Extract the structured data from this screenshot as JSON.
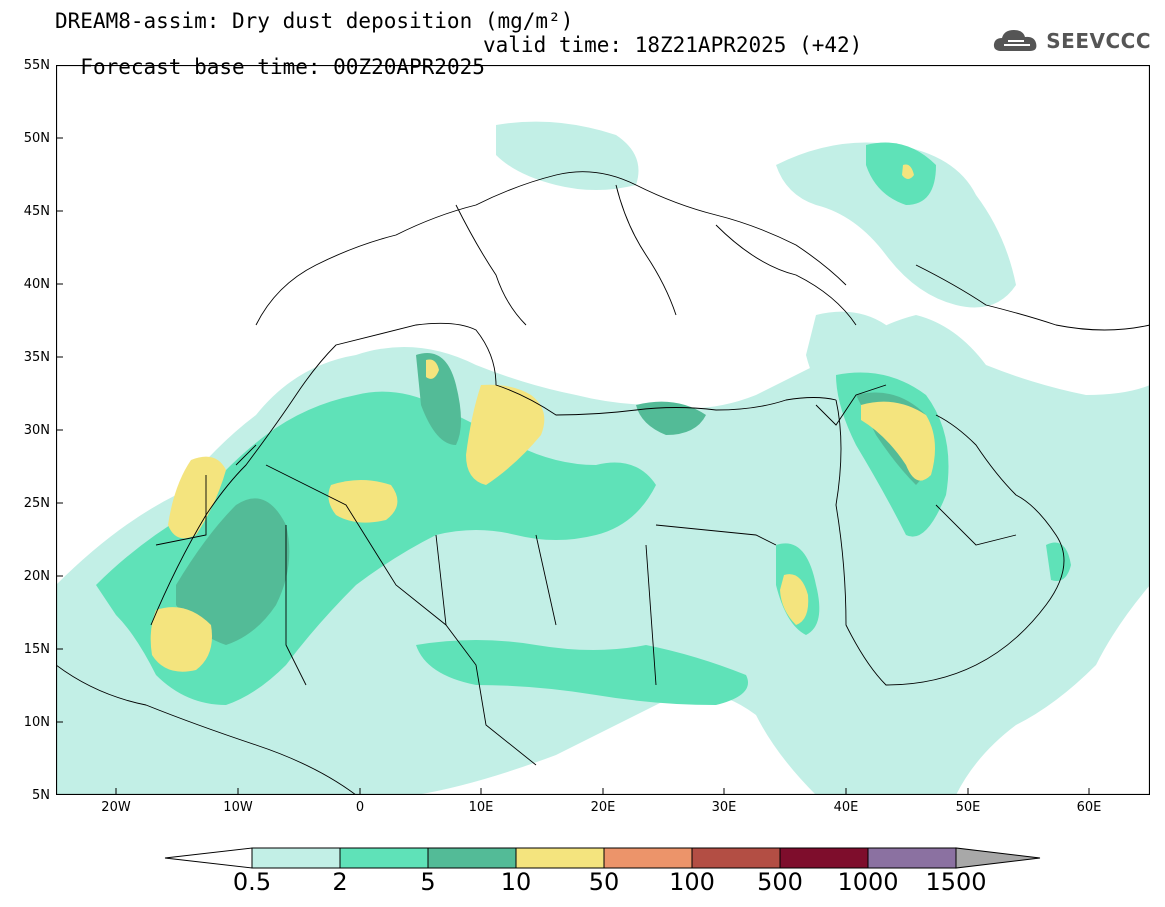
{
  "title": {
    "line1": "DREAM8-assim: Dry dust deposition (mg/m²)",
    "line2": "Forecast base time: 00Z20APR2025",
    "valid": "valid time: 18Z21APR2025 (+42)"
  },
  "logo": {
    "icon": "cloud-icon",
    "text": "SEEVCCC"
  },
  "axes": {
    "lat_labels": [
      "55N",
      "50N",
      "45N",
      "40N",
      "35N",
      "30N",
      "25N",
      "20N",
      "15N",
      "10N",
      "5N"
    ],
    "lon_labels": [
      "20W",
      "10W",
      "0",
      "10E",
      "20E",
      "30E",
      "40E",
      "50E",
      "60E"
    ],
    "lat_range": [
      5,
      55
    ],
    "lon_range": [
      -25,
      65
    ]
  },
  "legend": {
    "levels": [
      "0.5",
      "2",
      "5",
      "10",
      "50",
      "100",
      "500",
      "1000",
      "1500"
    ],
    "colors": [
      "#ffffff",
      "#c2efe6",
      "#5fe2b8",
      "#53bb97",
      "#f4e47e",
      "#ec946a",
      "#b34e44",
      "#7e0d2c",
      "#8b71a1",
      "#a8a8a8"
    ]
  },
  "colors": {
    "land": "#ffffff",
    "border": "#000000"
  }
}
